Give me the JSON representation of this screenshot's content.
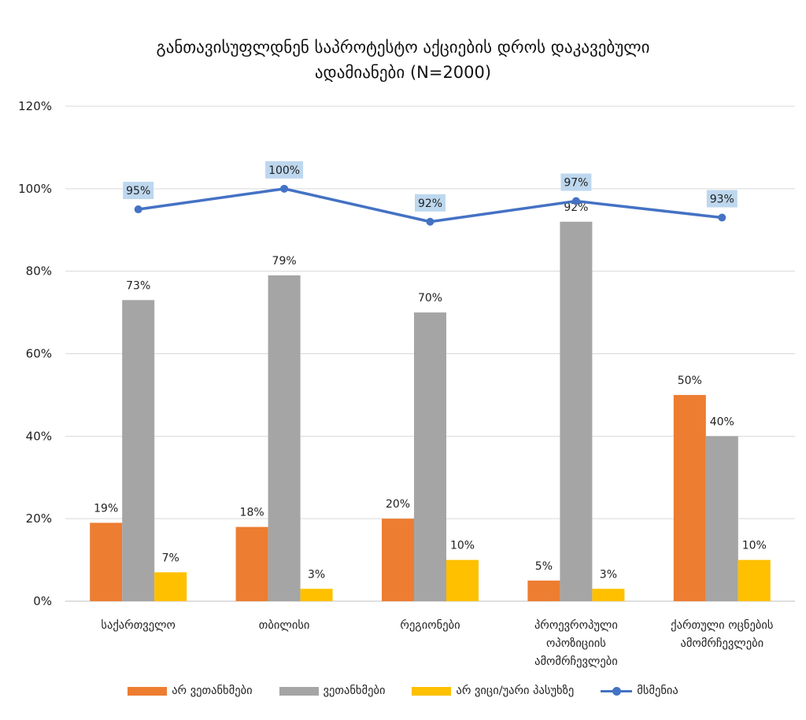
{
  "chart_data": {
    "type": "bar",
    "title": "განთავისუფლდნენ საპროტესტო აქციების დროს დაკავებული",
    "title_line2": "ადამიანები (N=2000)",
    "categories": [
      [
        "საქართველო"
      ],
      [
        "თბილისი"
      ],
      [
        "რეგიონები"
      ],
      [
        "პროევროპული",
        "ოპოზიციის",
        "ამომრჩევლები"
      ],
      [
        "ქართული ოცნების",
        "ამომრჩევლები"
      ]
    ],
    "ylim": [
      0,
      120
    ],
    "yticks": [
      0,
      20,
      40,
      60,
      80,
      100,
      120
    ],
    "ytick_labels": [
      "0%",
      "20%",
      "40%",
      "60%",
      "80%",
      "100%",
      "120%"
    ],
    "grid": true,
    "legend_position": "bottom",
    "series": [
      {
        "name": "არ ვეთანხმები",
        "type": "bar",
        "color": "#ED7D31",
        "values": [
          19,
          18,
          20,
          5,
          50
        ],
        "labels": [
          "19%",
          "18%",
          "20%",
          "5%",
          "50%"
        ]
      },
      {
        "name": "ვეთანხმები",
        "type": "bar",
        "color": "#A5A5A5",
        "values": [
          73,
          79,
          70,
          92,
          40
        ],
        "labels": [
          "73%",
          "79%",
          "70%",
          "92%",
          "40%"
        ]
      },
      {
        "name": "არ ვიცი/უარი პასუხზე",
        "type": "bar",
        "color": "#FFC000",
        "values": [
          7,
          3,
          10,
          3,
          10
        ],
        "labels": [
          "7%",
          "3%",
          "10%",
          "3%",
          "10%"
        ]
      },
      {
        "name": "მსმენია",
        "type": "line",
        "color": "#4472C4",
        "values": [
          95,
          100,
          92,
          97,
          93
        ],
        "labels": [
          "95%",
          "100%",
          "92%",
          "97%",
          "93%"
        ],
        "label_bg": "#BDD7EE"
      }
    ]
  }
}
